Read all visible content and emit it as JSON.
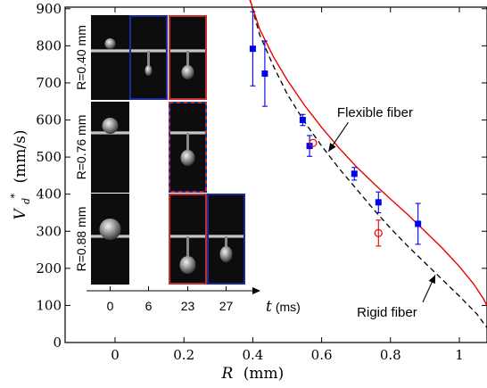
{
  "chart_data": {
    "type": "scatter",
    "xlabel": "R",
    "xlabel_unit": "(mm)",
    "ylabel": "V",
    "ylabel_sub": "d",
    "ylabel_sup": "*",
    "ylabel_unit": "(mm/s)",
    "xlim": [
      -0.1,
      1.08
    ],
    "ylim": [
      0,
      930
    ],
    "x_ticks": [
      0,
      0.2,
      0.4,
      0.6,
      0.8,
      1
    ],
    "x_tick_labels": [
      "0",
      "0.2",
      "0.4",
      "0.6",
      "0.8",
      "1"
    ],
    "y_ticks": [
      0,
      100,
      200,
      300,
      400,
      500,
      600,
      700,
      800,
      900
    ],
    "y_tick_labels": [
      "0",
      "100",
      "200",
      "300",
      "400",
      "500",
      "600",
      "700",
      "800",
      "900"
    ],
    "grid": false,
    "series": [
      {
        "key": "flexible-points",
        "marker": "square",
        "color": "#0000ee",
        "points": [
          {
            "x": 0.4,
            "y": 792,
            "err": 100
          },
          {
            "x": 0.435,
            "y": 725,
            "err": 88
          },
          {
            "x": 0.545,
            "y": 600,
            "err": 15
          },
          {
            "x": 0.565,
            "y": 530,
            "err": 28
          },
          {
            "x": 0.695,
            "y": 455,
            "err": 17
          },
          {
            "x": 0.765,
            "y": 378,
            "err": 28
          },
          {
            "x": 0.88,
            "y": 320,
            "err": 55
          }
        ]
      },
      {
        "key": "rigid-points",
        "marker": "open-circle",
        "color": "#ee0000",
        "points": [
          {
            "x": 0.575,
            "y": 538,
            "err": 0
          },
          {
            "x": 0.765,
            "y": 295,
            "err": 35
          }
        ]
      },
      {
        "key": "flexible-curve",
        "style": "solid",
        "color": "#ee0000",
        "points": [
          [
            0.39,
            930
          ],
          [
            0.42,
            845
          ],
          [
            0.46,
            770
          ],
          [
            0.5,
            708
          ],
          [
            0.55,
            640
          ],
          [
            0.6,
            580
          ],
          [
            0.65,
            525
          ],
          [
            0.7,
            475
          ],
          [
            0.75,
            430
          ],
          [
            0.8,
            387
          ],
          [
            0.85,
            345
          ],
          [
            0.9,
            300
          ],
          [
            0.95,
            255
          ],
          [
            1.0,
            205
          ],
          [
            1.04,
            160
          ],
          [
            1.07,
            118
          ],
          [
            1.08,
            100
          ]
        ]
      },
      {
        "key": "rigid-curve",
        "style": "dashed",
        "color": "#000000",
        "points": [
          [
            0.39,
            930
          ],
          [
            0.42,
            830
          ],
          [
            0.46,
            745
          ],
          [
            0.5,
            670
          ],
          [
            0.55,
            595
          ],
          [
            0.6,
            530
          ],
          [
            0.65,
            470
          ],
          [
            0.7,
            415
          ],
          [
            0.75,
            360
          ],
          [
            0.8,
            308
          ],
          [
            0.85,
            260
          ],
          [
            0.9,
            215
          ],
          [
            0.95,
            170
          ],
          [
            1.0,
            125
          ],
          [
            1.05,
            78
          ],
          [
            1.08,
            40
          ]
        ]
      }
    ],
    "annotations": [
      {
        "text": "Flexible fiber",
        "x": 0.755,
        "y": 608,
        "arrow_to": [
          0.62,
          515
        ]
      },
      {
        "text": "Rigid fiber",
        "x": 0.79,
        "y": 70,
        "arrow_to": [
          0.93,
          182
        ]
      }
    ],
    "inset": {
      "time_axis_label": "t",
      "time_axis_unit": "(ms)",
      "time_labels": [
        "0",
        "6",
        "23",
        "27"
      ],
      "rows": [
        {
          "label": "R=0.40 mm",
          "frames": [
            {
              "col": 0,
              "frame": "black"
            },
            {
              "col": 1,
              "frame": "blue"
            },
            {
              "col": 2,
              "frame": "red"
            }
          ]
        },
        {
          "label": "R=0.76 mm",
          "frames": [
            {
              "col": 0,
              "frame": "black"
            },
            {
              "col": 2,
              "frame": "red-blue-dashed"
            }
          ]
        },
        {
          "label": "R=0.88 mm",
          "frames": [
            {
              "col": 0,
              "frame": "black"
            },
            {
              "col": 2,
              "frame": "red"
            },
            {
              "col": 3,
              "frame": "blue"
            }
          ]
        }
      ]
    }
  }
}
